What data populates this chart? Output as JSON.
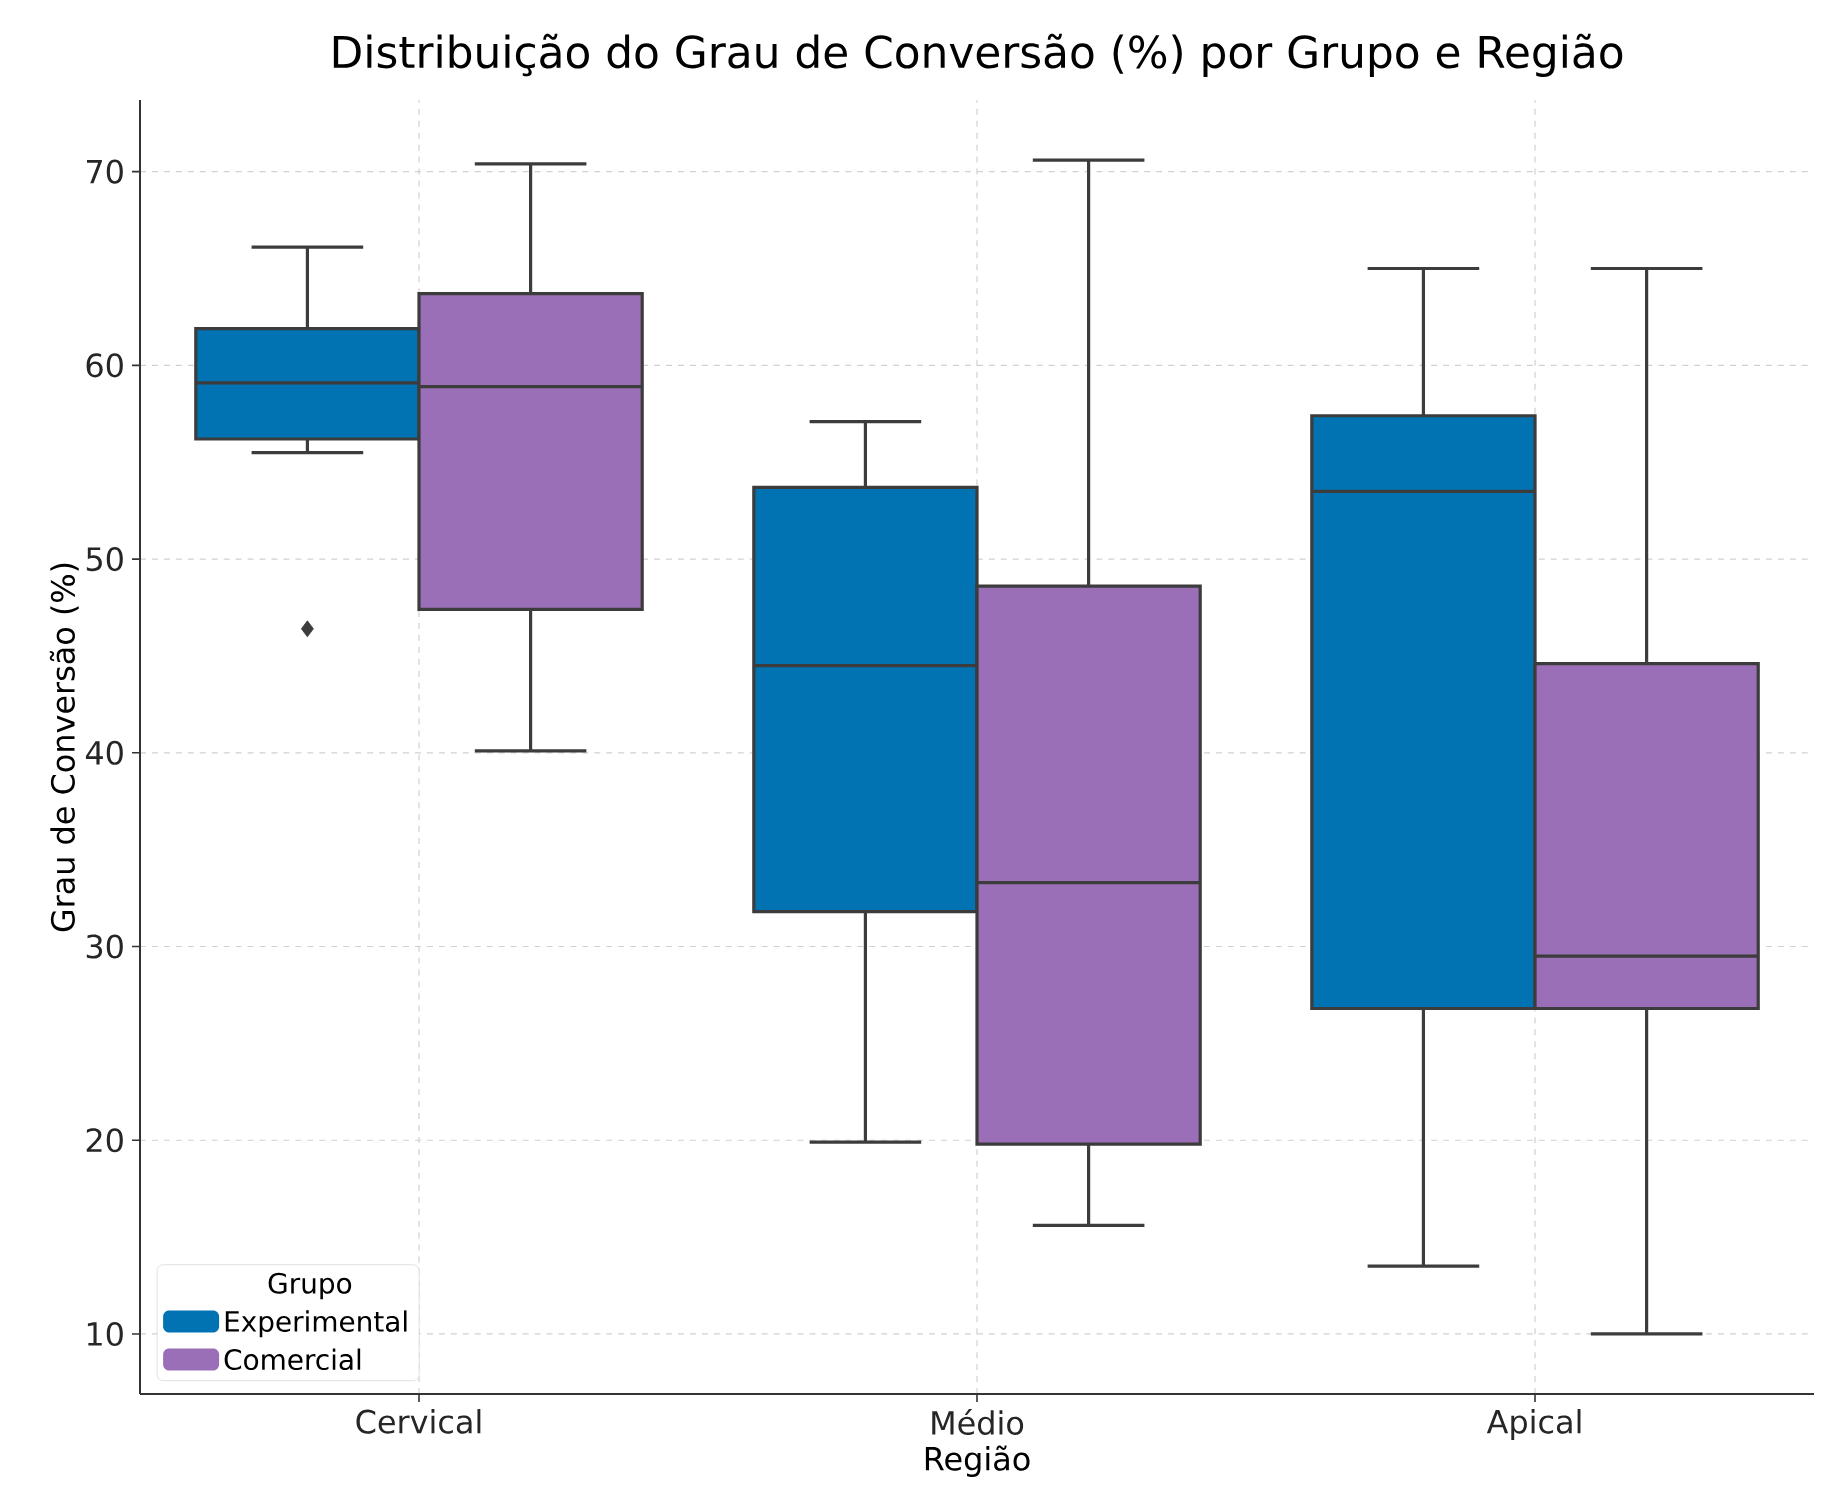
{
  "chart_data": {
    "type": "box",
    "title": "Distribuição do Grau de Conversão (%) por Grupo e Região",
    "xlabel": "Região",
    "ylabel": "Grau de Conversão (%)",
    "categories": [
      "Cervical",
      "Médio",
      "Apical"
    ],
    "series": [
      {
        "name": "Experimental",
        "color": "#0173b2",
        "boxes": [
          {
            "low": 55.5,
            "q1": 56.2,
            "median": 59.1,
            "q3": 61.9,
            "high": 66.1,
            "outliers": [
              46.4
            ]
          },
          {
            "low": 19.9,
            "q1": 31.8,
            "median": 44.5,
            "q3": 53.7,
            "high": 57.1
          },
          {
            "low": 13.5,
            "q1": 26.8,
            "median": 53.5,
            "q3": 57.4,
            "high": 65
          }
        ]
      },
      {
        "name": "Comercial",
        "color": "#9b6fb7",
        "boxes": [
          {
            "low": 40.1,
            "q1": 47.4,
            "median": 58.9,
            "q3": 63.7,
            "high": 70.4
          },
          {
            "low": 15.6,
            "q1": 19.8,
            "median": 33.3,
            "q3": 48.6,
            "high": 70.6
          },
          {
            "low": 10,
            "q1": 26.8,
            "median": 29.5,
            "q3": 44.6,
            "high": 65
          }
        ]
      }
    ],
    "ylim": [
      6.9,
      73.7
    ],
    "yticks": [
      10,
      20,
      30,
      40,
      50,
      60,
      70
    ],
    "grid": true,
    "legend": "bottom left",
    "legend_title": "Grupo"
  }
}
